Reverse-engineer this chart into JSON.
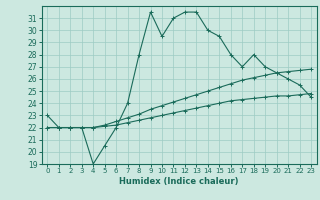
{
  "xlabel": "Humidex (Indice chaleur)",
  "bg_color": "#cce8e0",
  "line_color": "#1a6b5a",
  "grid_color": "#9eccc4",
  "xlim": [
    -0.5,
    23.5
  ],
  "ylim": [
    19,
    32
  ],
  "xticks": [
    0,
    1,
    2,
    3,
    4,
    5,
    6,
    7,
    8,
    9,
    10,
    11,
    12,
    13,
    14,
    15,
    16,
    17,
    18,
    19,
    20,
    21,
    22,
    23
  ],
  "yticks": [
    19,
    20,
    21,
    22,
    23,
    24,
    25,
    26,
    27,
    28,
    29,
    30,
    31
  ],
  "series1_x": [
    0,
    1,
    2,
    3,
    4,
    5,
    6,
    7,
    8,
    9,
    10,
    11,
    12,
    13,
    14,
    15,
    16,
    17,
    18,
    19,
    20,
    21,
    22,
    23
  ],
  "series1_y": [
    23,
    22,
    22,
    22,
    19,
    20.5,
    22,
    24,
    28,
    31.5,
    29.5,
    31,
    31.5,
    31.5,
    30,
    29.5,
    28,
    27,
    28,
    27,
    26.5,
    26,
    25.5,
    24.5
  ],
  "series2_x": [
    0,
    1,
    2,
    3,
    4,
    5,
    6,
    7,
    8,
    9,
    10,
    11,
    12,
    13,
    14,
    15,
    16,
    17,
    18,
    19,
    20,
    21,
    22,
    23
  ],
  "series2_y": [
    22,
    22,
    22,
    22,
    22,
    22.2,
    22.5,
    22.8,
    23.1,
    23.5,
    23.8,
    24.1,
    24.4,
    24.7,
    25.0,
    25.3,
    25.6,
    25.9,
    26.1,
    26.3,
    26.5,
    26.6,
    26.7,
    26.8
  ],
  "series3_x": [
    0,
    1,
    2,
    3,
    4,
    5,
    6,
    7,
    8,
    9,
    10,
    11,
    12,
    13,
    14,
    15,
    16,
    17,
    18,
    19,
    20,
    21,
    22,
    23
  ],
  "series3_y": [
    22,
    22,
    22,
    22,
    22,
    22.1,
    22.2,
    22.4,
    22.6,
    22.8,
    23.0,
    23.2,
    23.4,
    23.6,
    23.8,
    24.0,
    24.2,
    24.3,
    24.4,
    24.5,
    24.6,
    24.6,
    24.7,
    24.8
  ]
}
